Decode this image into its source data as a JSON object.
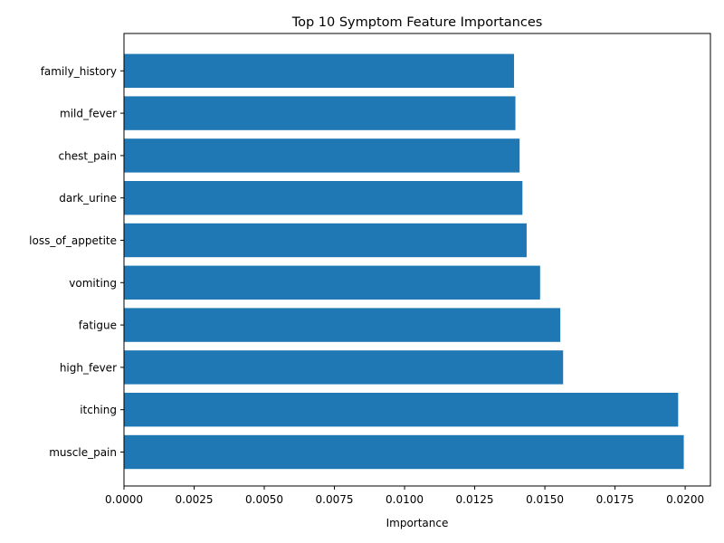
{
  "chart_data": {
    "type": "bar",
    "orientation": "horizontal",
    "title": "Top 10 Symptom Feature Importances",
    "xlabel": "Importance",
    "ylabel": "",
    "categories": [
      "muscle_pain",
      "itching",
      "high_fever",
      "fatigue",
      "vomiting",
      "loss_of_appetite",
      "dark_urine",
      "chest_pain",
      "mild_fever",
      "family_history"
    ],
    "values": [
      0.01995,
      0.01975,
      0.01565,
      0.01555,
      0.01483,
      0.01435,
      0.0142,
      0.0141,
      0.01395,
      0.0139
    ],
    "xlim": [
      0,
      0.0209
    ],
    "xticks": [
      0.0,
      0.0025,
      0.005,
      0.0075,
      0.01,
      0.0125,
      0.015,
      0.0175,
      0.02
    ],
    "xtick_labels": [
      "0.0000",
      "0.0025",
      "0.0050",
      "0.0075",
      "0.0100",
      "0.0125",
      "0.0150",
      "0.0175",
      "0.0200"
    ],
    "bar_color": "#1f77b4",
    "grid": false,
    "legend": "none"
  }
}
